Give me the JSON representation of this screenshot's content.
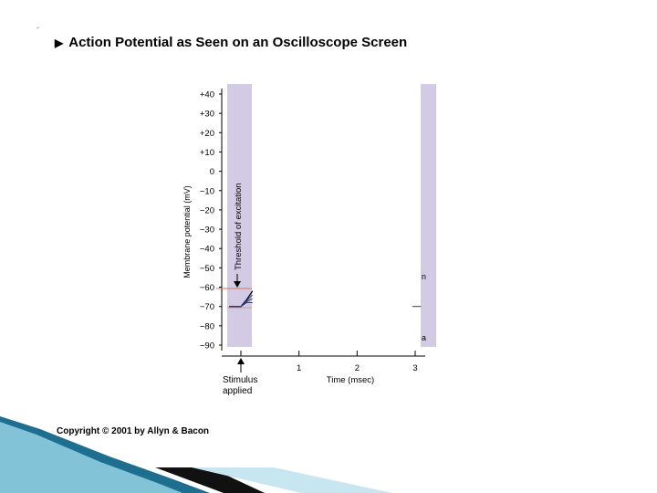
{
  "slide": {
    "title": "Action Potential as Seen on an Oscilloscope Screen",
    "copyright": "Copyright © 2001 by Allyn & Bacon"
  },
  "colors": {
    "shade": "#d2cbe3",
    "threshold_line": "#d4785a",
    "trace": "#2d3a8c",
    "bottom_band_dark": "#1e6e8f",
    "bottom_band_light": "#8ecce0"
  },
  "chart_data": {
    "type": "line",
    "ylabel": "Membrane potential (mV)",
    "xlabel": "Time (msec)",
    "ylim": [
      -90,
      40
    ],
    "y_ticks": [
      "+40",
      "+30",
      "+20",
      "+10",
      "0",
      "−10",
      "−20",
      "−30",
      "−40",
      "−50",
      "−60",
      "−70",
      "−80",
      "−90"
    ],
    "y_tick_values": [
      40,
      30,
      20,
      10,
      0,
      -10,
      -20,
      -30,
      -40,
      -50,
      -60,
      -70,
      -80,
      -90
    ],
    "x_ticks": [
      "1",
      "2",
      "3"
    ],
    "x_tick_values": [
      1,
      2,
      3
    ],
    "threshold_label": "Threshold of excitation",
    "threshold_mV": -60,
    "resting_mV": -70,
    "stimulus_label_line1": "Stimulus",
    "stimulus_label_line2": "applied",
    "stimulus_time": 0,
    "series": [
      {
        "values": [
          [
            -0.2,
            -70
          ],
          [
            0,
            -70
          ],
          [
            0.1,
            -66.5
          ],
          [
            0.2,
            -62
          ]
        ]
      },
      {
        "values": [
          [
            -0.2,
            -70
          ],
          [
            0,
            -70
          ],
          [
            0.1,
            -67
          ],
          [
            0.2,
            -64
          ]
        ]
      },
      {
        "values": [
          [
            -0.2,
            -70
          ],
          [
            0,
            -70
          ],
          [
            0.1,
            -67.5
          ],
          [
            0.2,
            -66
          ]
        ]
      },
      {
        "values": [
          [
            -0.2,
            -70
          ],
          [
            0,
            -70
          ],
          [
            0.1,
            -68
          ],
          [
            0.2,
            -68
          ]
        ]
      },
      {
        "values": [
          [
            2.95,
            -70
          ],
          [
            3.1,
            -70
          ]
        ]
      }
    ]
  }
}
